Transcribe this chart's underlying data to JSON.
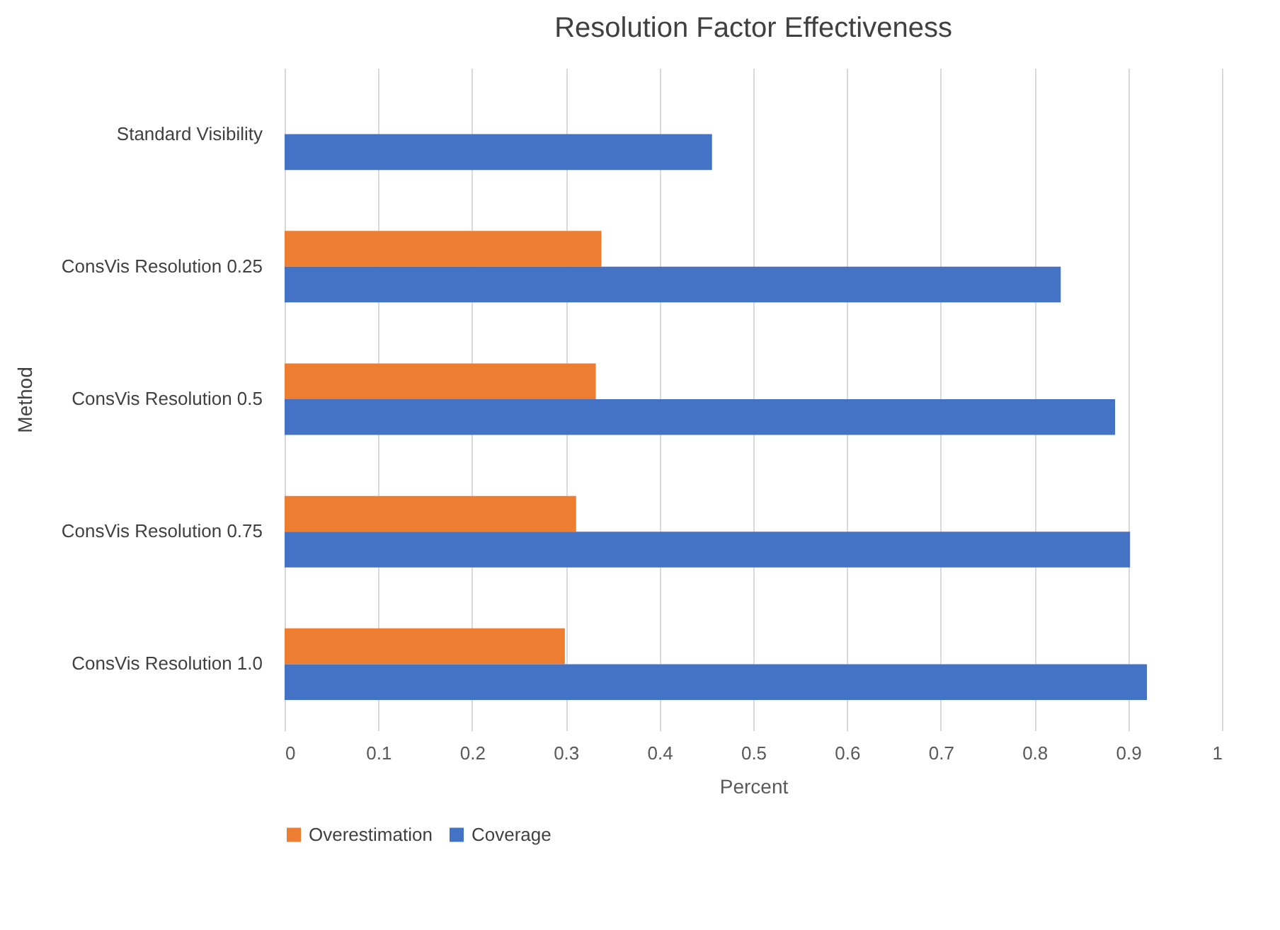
{
  "chart_data": {
    "type": "bar",
    "orientation": "horizontal",
    "title": "Resolution Factor Effectiveness",
    "xlabel": "Percent",
    "ylabel": "Method",
    "categories": [
      "Standard Visibility",
      "ConsVis Resolution 0.25",
      "ConsVis Resolution 0.5",
      "ConsVis Resolution 0.75",
      "ConsVis Resolution 1.0"
    ],
    "series": [
      {
        "name": "Overestimation",
        "color": "#ed7d31",
        "values": [
          null,
          0.338,
          0.332,
          0.311,
          0.299
        ]
      },
      {
        "name": "Coverage",
        "color": "#4472c4",
        "values": [
          0.456,
          0.828,
          0.886,
          0.902,
          0.92
        ]
      }
    ],
    "xlim": [
      0,
      1
    ],
    "xticks": [
      0,
      0.1,
      0.2,
      0.3,
      0.4,
      0.5,
      0.6,
      0.7,
      0.8,
      0.9,
      1
    ],
    "grid": "x",
    "legend": "bottom"
  }
}
